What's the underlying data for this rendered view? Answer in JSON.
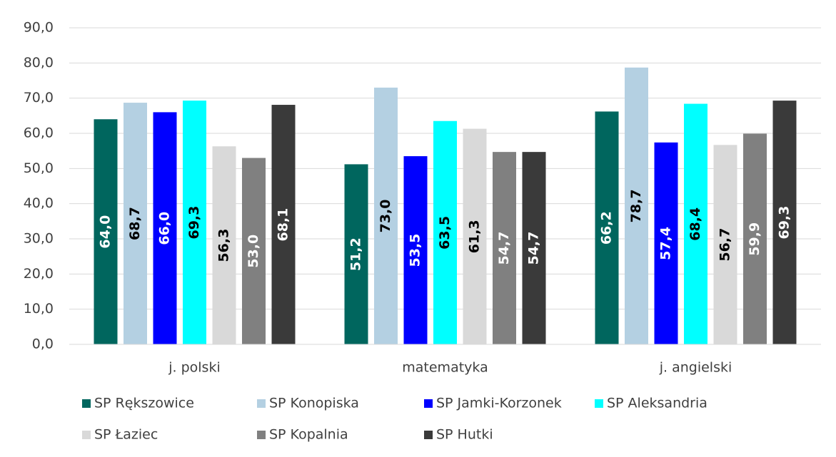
{
  "chart_data": {
    "type": "bar",
    "categories": [
      "j. polski",
      "matematyka",
      "j. angielski"
    ],
    "series": [
      {
        "name": "SP Rększowice",
        "color": "#00665e",
        "values": [
          64.0,
          51.2,
          66.2
        ],
        "value_labels": [
          "64,0",
          "51,2",
          "66,2"
        ]
      },
      {
        "name": "SP Konopiska",
        "color": "#b4d0e2",
        "values": [
          68.7,
          73.0,
          78.7
        ],
        "value_labels": [
          "68,7",
          "73,0",
          "78,7"
        ]
      },
      {
        "name": "SP Jamki-Korzonek",
        "color": "#0000ff",
        "values": [
          66.0,
          53.5,
          57.4
        ],
        "value_labels": [
          "66,0",
          "53,5",
          "57,4"
        ]
      },
      {
        "name": "SP Aleksandria",
        "color": "#00ffff",
        "values": [
          69.3,
          63.5,
          68.4
        ],
        "value_labels": [
          "69,3",
          "63,5",
          "68,4"
        ]
      },
      {
        "name": "SP Łaziec",
        "color": "#d9d9d9",
        "values": [
          56.3,
          61.3,
          56.7
        ],
        "value_labels": [
          "56,3",
          "61,3",
          "56,7"
        ]
      },
      {
        "name": "SP Kopalnia",
        "color": "#808080",
        "values": [
          53.0,
          54.7,
          59.9
        ],
        "value_labels": [
          "53,0",
          "54,7",
          "59,9"
        ]
      },
      {
        "name": "SP Hutki",
        "color": "#3a3a3a",
        "values": [
          68.1,
          54.7,
          69.3
        ],
        "value_labels": [
          "68,1",
          "54,7",
          "69,3"
        ]
      }
    ],
    "ylim": [
      0,
      90
    ],
    "yticks": [
      {
        "value": 0,
        "label": "0,0"
      },
      {
        "value": 10,
        "label": "10,0"
      },
      {
        "value": 20,
        "label": "20,0"
      },
      {
        "value": 30,
        "label": "30,0"
      },
      {
        "value": 40,
        "label": "40,0"
      },
      {
        "value": 50,
        "label": "50,0"
      },
      {
        "value": 60,
        "label": "60,0"
      },
      {
        "value": 70,
        "label": "70,0"
      },
      {
        "value": 80,
        "label": "80,0"
      },
      {
        "value": 90,
        "label": "90,0"
      }
    ],
    "grid": true,
    "legend": "bottom"
  }
}
